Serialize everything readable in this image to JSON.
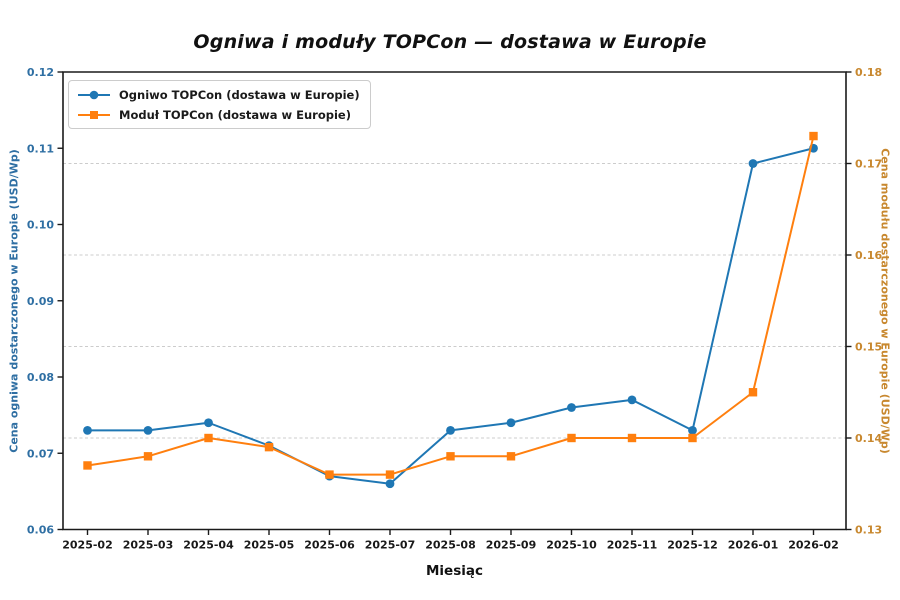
{
  "title": "Ogniwa i moduły TOPCon — dostawa w Europie",
  "chart_data": {
    "type": "line",
    "x_label": "Miesiąc",
    "categories": [
      "2025-02",
      "2025-03",
      "2025-04",
      "2025-05",
      "2025-06",
      "2025-07",
      "2025-08",
      "2025-09",
      "2025-10",
      "2025-11",
      "2025-12",
      "2026-01",
      "2026-02"
    ],
    "series": [
      {
        "name": "Ogniwo TOPCon (dostawa w Europie)",
        "axis": "left",
        "color": "#1f77b4",
        "marker": "circle",
        "values": [
          0.073,
          0.073,
          0.074,
          0.071,
          0.067,
          0.066,
          0.073,
          0.074,
          0.076,
          0.077,
          0.073,
          0.108,
          0.11
        ]
      },
      {
        "name": "Moduł TOPCon (dostawa w Europie)",
        "axis": "right",
        "color": "#ff7f0e",
        "marker": "square",
        "values": [
          0.137,
          0.138,
          0.14,
          0.139,
          0.136,
          0.136,
          0.138,
          0.138,
          0.14,
          0.14,
          0.14,
          0.145,
          0.173
        ]
      }
    ],
    "left_axis": {
      "label": "Cena ogniwa dostarczonego w Europie (USD/Wp)",
      "min": 0.06,
      "max": 0.12,
      "tick_labels": [
        "0.06",
        "0.07",
        "0.08",
        "0.09",
        "0.10",
        "0.11",
        "0.12"
      ],
      "color": "#1f77b4",
      "text_color": "#2f6fa3"
    },
    "right_axis": {
      "label": "Cena modułu dostarczonego w Europie (USD/Wp)",
      "min": 0.13,
      "max": 0.18,
      "tick_labels": [
        "0.13",
        "0.14",
        "0.15",
        "0.16",
        "0.17",
        "0.18"
      ],
      "color": "#ff7f0e",
      "text_color": "#c8882f"
    },
    "grid": {
      "style": "dashed-horizontal",
      "axis": "right",
      "values": [
        0.14,
        0.15,
        0.16,
        0.17
      ],
      "color": "#cccccc"
    },
    "legend_position": "top-left",
    "frame_color": "#1a1a1a",
    "tick_text_color": "#1a1a1a"
  }
}
